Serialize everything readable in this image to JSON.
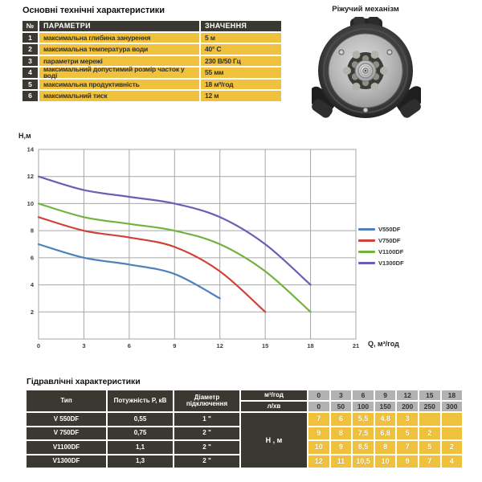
{
  "colors": {
    "yellow": "#efc13c",
    "dark": "#3a3830",
    "gray": "#b2b2b2",
    "grid": "#a6a6a6",
    "axisText": "#3d3d3d",
    "textDark": "#33302a"
  },
  "top_section": {
    "title": "Основні технічні характеристики",
    "table": {
      "headers": {
        "num": "№",
        "param": "ПАРАМЕТРИ",
        "value": "ЗНАЧЕННЯ"
      },
      "rows": [
        {
          "num": "1",
          "param": "максимальна глибина занурення",
          "value": "5 м"
        },
        {
          "num": "2",
          "param": "максимальна температура води",
          "value": "40° С"
        },
        {
          "num": "3",
          "param": "параметри мережі",
          "value": "230 В/50 Гц"
        },
        {
          "num": "4",
          "param": "максимальний допустимий розмір часток у воді",
          "value": "55 мм"
        },
        {
          "num": "5",
          "param": "максимальна продуктивність",
          "value": "18 м³/год"
        },
        {
          "num": "6",
          "param": "максимальний тиск",
          "value": "12 м"
        }
      ]
    }
  },
  "mechanism": {
    "caption": "Ріжучий механізм"
  },
  "chart_data": {
    "type": "line",
    "title": "",
    "xlabel": "Q, м³/год",
    "ylabel": "Н,м",
    "xlim": [
      0,
      21
    ],
    "ylim": [
      0,
      14
    ],
    "xticks": [
      0,
      3,
      6,
      9,
      12,
      15,
      18,
      21
    ],
    "yticks": [
      0,
      2,
      4,
      6,
      8,
      10,
      12,
      14
    ],
    "grid": true,
    "legend_position": "right",
    "series": [
      {
        "name": "V550DF",
        "color": "#4f81bd",
        "points": [
          [
            0,
            7
          ],
          [
            3,
            6
          ],
          [
            6,
            5.5
          ],
          [
            9,
            4.8
          ],
          [
            12,
            3
          ]
        ]
      },
      {
        "name": "V750DF",
        "color": "#cf4237",
        "points": [
          [
            0,
            9
          ],
          [
            3,
            8
          ],
          [
            6,
            7.5
          ],
          [
            9,
            6.8
          ],
          [
            12,
            5
          ],
          [
            15,
            2
          ]
        ]
      },
      {
        "name": "V1100DF",
        "color": "#70b33f",
        "points": [
          [
            0,
            10
          ],
          [
            3,
            9
          ],
          [
            6,
            8.5
          ],
          [
            9,
            8
          ],
          [
            12,
            7
          ],
          [
            15,
            5
          ],
          [
            18,
            2
          ]
        ]
      },
      {
        "name": "V1300DF",
        "color": "#6b5fb5",
        "points": [
          [
            0,
            12
          ],
          [
            3,
            11
          ],
          [
            6,
            10.5
          ],
          [
            9,
            10
          ],
          [
            12,
            9
          ],
          [
            15,
            7
          ],
          [
            18,
            4
          ]
        ]
      }
    ]
  },
  "bottom_section": {
    "title": "Гідравлічні характеристики",
    "table": {
      "col_headers": {
        "type": "Тип",
        "power": "Потужність Р, кВ",
        "diameter": "Діаметр підключення"
      },
      "flow_label": "м³/год",
      "flow_values": [
        "0",
        "3",
        "6",
        "9",
        "12",
        "15",
        "18"
      ],
      "lmin_label": "л/хв",
      "lmin_values": [
        "0",
        "50",
        "100",
        "150",
        "200",
        "250",
        "300"
      ],
      "head_label": "Н , м",
      "rows": [
        {
          "type": "V 550DF",
          "power": "0,55",
          "diameter": "1 \"",
          "values": [
            "7",
            "6",
            "5,5",
            "4,8",
            "3",
            "",
            ""
          ]
        },
        {
          "type": "V 750DF",
          "power": "0,75",
          "diameter": "2 \"",
          "values": [
            "9",
            "8",
            "7,5",
            "6,8",
            "5",
            "2",
            ""
          ]
        },
        {
          "type": "V1100DF",
          "power": "1,1",
          "diameter": "2 \"",
          "values": [
            "10",
            "9",
            "8,5",
            "8",
            "7",
            "5",
            "2"
          ]
        },
        {
          "type": "V1300DF",
          "power": "1,3",
          "diameter": "2 \"",
          "values": [
            "12",
            "11",
            "10,5",
            "10",
            "9",
            "7",
            "4"
          ]
        }
      ]
    }
  }
}
